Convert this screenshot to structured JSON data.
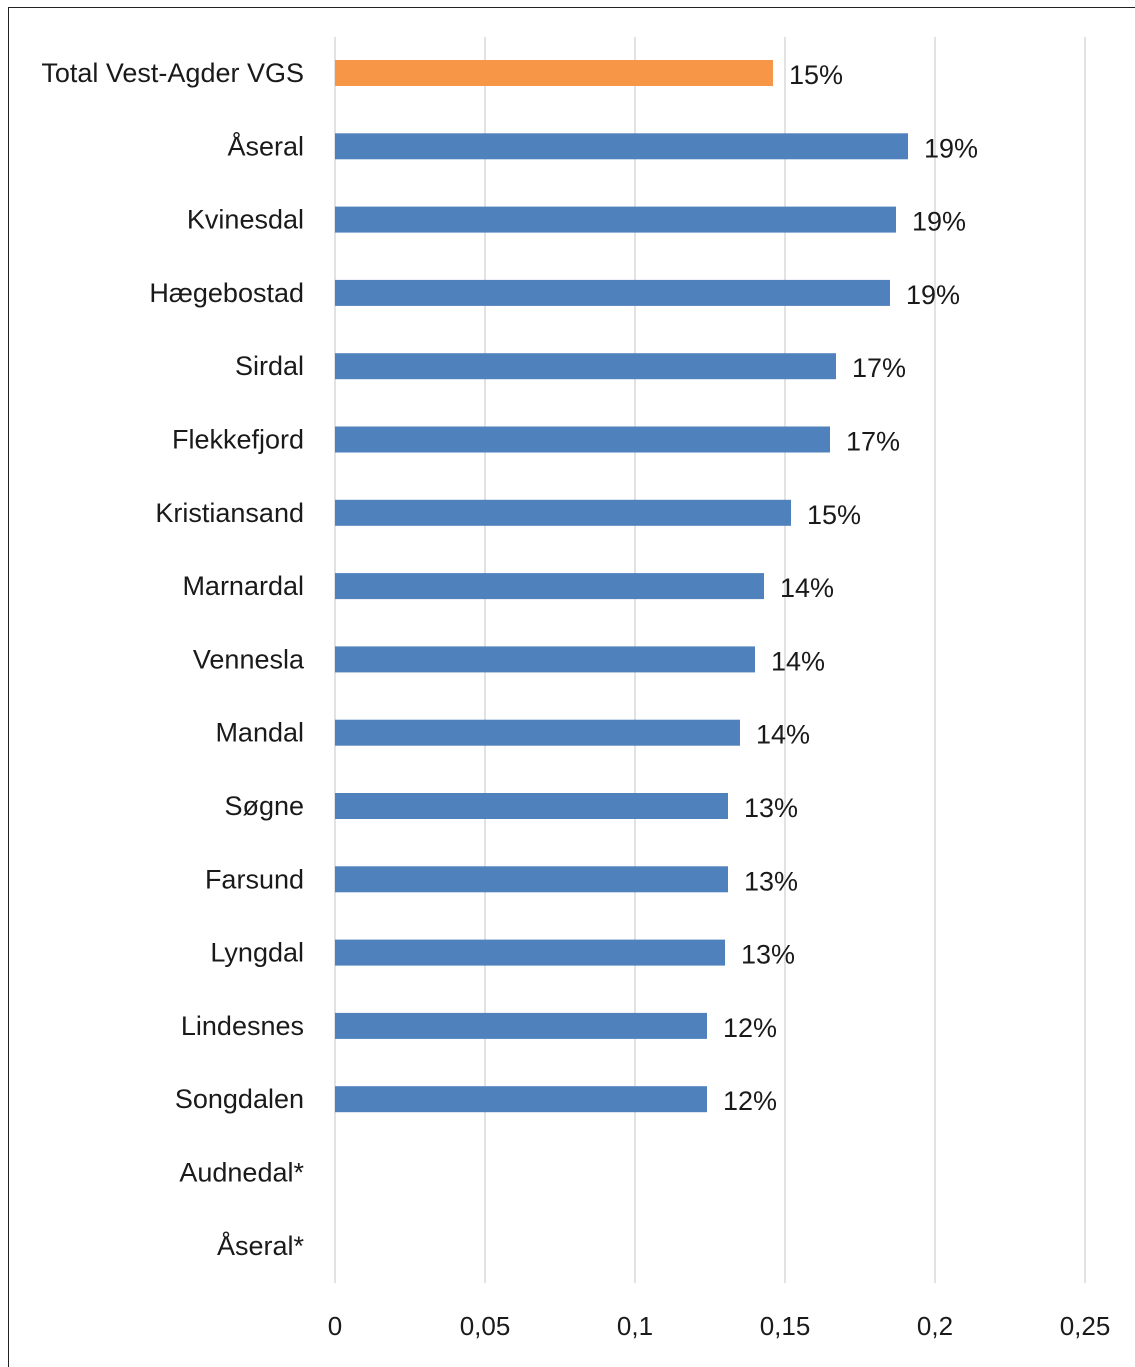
{
  "chart_data": {
    "type": "bar",
    "orientation": "horizontal",
    "title": "",
    "xlabel": "",
    "ylabel": "",
    "categories": [
      "Total Vest-Agder VGS",
      "Åseral",
      "Kvinesdal",
      "Hægebostad",
      "Sirdal",
      "Flekkefjord",
      "Kristiansand",
      "Marnardal",
      "Vennesla",
      "Mandal",
      "Søgne",
      "Farsund",
      "Lyngdal",
      "Lindesnes",
      "Songdalen",
      "Audnedal*",
      "Åseral*"
    ],
    "values": [
      0.146,
      0.191,
      0.187,
      0.185,
      0.167,
      0.165,
      0.152,
      0.143,
      0.14,
      0.135,
      0.131,
      0.131,
      0.13,
      0.124,
      0.124,
      null,
      null
    ],
    "data_labels": [
      "15%",
      "19%",
      "19%",
      "19%",
      "17%",
      "17%",
      "15%",
      "14%",
      "14%",
      "14%",
      "13%",
      "13%",
      "13%",
      "12%",
      "12%",
      "",
      ""
    ],
    "highlight_index": 0,
    "colors": {
      "bar": "#4f81bd",
      "highlight": "#f79646",
      "grid": "#d9d9d9"
    },
    "xlim": [
      0,
      0.25
    ],
    "xticks": [
      0,
      0.05,
      0.1,
      0.15,
      0.2,
      0.25
    ],
    "xtick_labels": [
      "0",
      "0,05",
      "0,1",
      "0,15",
      "0,2",
      "0,25"
    ],
    "grid": true,
    "legend": "none"
  }
}
